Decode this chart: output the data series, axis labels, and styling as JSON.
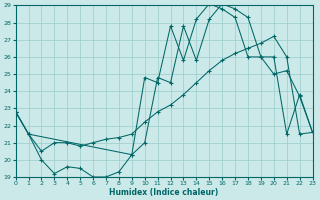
{
  "xlabel": "Humidex (Indice chaleur)",
  "xlim": [
    0,
    23
  ],
  "ylim": [
    19,
    29
  ],
  "xticks": [
    0,
    1,
    2,
    3,
    4,
    5,
    6,
    7,
    8,
    9,
    10,
    11,
    12,
    13,
    14,
    15,
    16,
    17,
    18,
    19,
    20,
    21,
    22,
    23
  ],
  "yticks": [
    19,
    20,
    21,
    22,
    23,
    24,
    25,
    26,
    27,
    28,
    29
  ],
  "bg_color": "#cce9e9",
  "line_color": "#006666",
  "grid_color": "#99cccc",
  "line1_x": [
    0,
    1,
    2,
    3,
    4,
    5,
    6,
    7,
    8,
    9,
    10,
    11,
    12,
    13,
    14,
    15,
    16,
    17,
    18,
    19,
    20,
    21,
    22,
    23
  ],
  "line1_y": [
    22.8,
    21.5,
    20.0,
    19.2,
    19.6,
    19.5,
    19.0,
    19.0,
    19.3,
    20.3,
    21.0,
    24.8,
    24.5,
    27.8,
    25.8,
    28.2,
    29.1,
    28.8,
    28.3,
    26.0,
    25.0,
    25.2,
    23.7,
    21.6
  ],
  "line2_x": [
    0,
    1,
    2,
    3,
    4,
    5,
    6,
    7,
    8,
    9,
    10,
    11,
    12,
    13,
    14,
    15,
    16,
    17,
    18,
    19,
    20,
    21,
    22,
    23
  ],
  "line2_y": [
    22.8,
    21.5,
    20.5,
    21.0,
    21.0,
    20.8,
    21.0,
    21.2,
    21.3,
    21.5,
    22.2,
    22.8,
    23.2,
    23.8,
    24.5,
    25.2,
    25.8,
    26.2,
    26.5,
    26.8,
    27.2,
    26.0,
    21.5,
    21.6
  ],
  "line3_x": [
    0,
    1,
    9,
    10,
    11,
    12,
    13,
    14,
    15,
    16,
    17,
    18,
    19,
    20,
    21,
    22,
    23
  ],
  "line3_y": [
    22.8,
    21.5,
    20.3,
    24.8,
    24.5,
    27.8,
    25.8,
    28.2,
    29.1,
    28.8,
    28.3,
    26.0,
    26.0,
    26.0,
    21.5,
    23.8,
    21.6
  ]
}
